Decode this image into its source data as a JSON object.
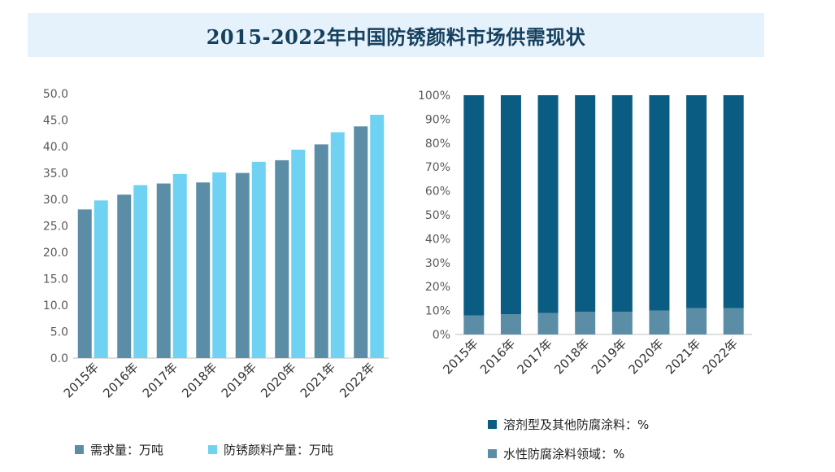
{
  "title": "2015-2022年中国防锈颜料市场供需现状",
  "colors": {
    "demand": "#5b8ea6",
    "production": "#6fd2f3",
    "solvent": "#0a5c82",
    "water": "#5b8ea6",
    "axis": "#bfbfbf",
    "tick": "#595959",
    "title_bg": "#e6f2fb"
  },
  "chart_data": [
    {
      "type": "bar",
      "categories": [
        "2015年",
        "2016年",
        "2017年",
        "2018年",
        "2019年",
        "2020年",
        "2021年",
        "2022年"
      ],
      "series": [
        {
          "name": "需求量：万吨",
          "values": [
            28.1,
            30.9,
            33.0,
            33.2,
            35.0,
            37.4,
            40.4,
            43.8
          ]
        },
        {
          "name": "防锈颜料产量：万吨",
          "values": [
            29.8,
            32.7,
            34.8,
            35.1,
            37.1,
            39.4,
            42.7,
            46.0
          ]
        }
      ],
      "ylim": [
        0,
        50
      ],
      "yticks": [
        "0.0",
        "5.0",
        "10.0",
        "15.0",
        "20.0",
        "25.0",
        "30.0",
        "35.0",
        "40.0",
        "45.0",
        "50.0"
      ],
      "legend_position": "bottom"
    },
    {
      "type": "bar",
      "stacked": true,
      "categories": [
        "2015年",
        "2016年",
        "2017年",
        "2018年",
        "2019年",
        "2020年",
        "2021年",
        "2022年"
      ],
      "series": [
        {
          "name": "水性防腐涂料领域：%",
          "values": [
            8,
            8.5,
            9,
            9.5,
            9.5,
            10,
            11,
            11
          ]
        },
        {
          "name": "溶剂型及其他防腐涂料：%",
          "values": [
            92,
            91.5,
            91,
            90.5,
            90.5,
            90,
            89,
            89
          ]
        }
      ],
      "ylim": [
        0,
        100
      ],
      "yticks": [
        "0%",
        "10%",
        "20%",
        "30%",
        "40%",
        "50%",
        "60%",
        "70%",
        "80%",
        "90%",
        "100%"
      ],
      "legend_position": "bottom"
    }
  ]
}
